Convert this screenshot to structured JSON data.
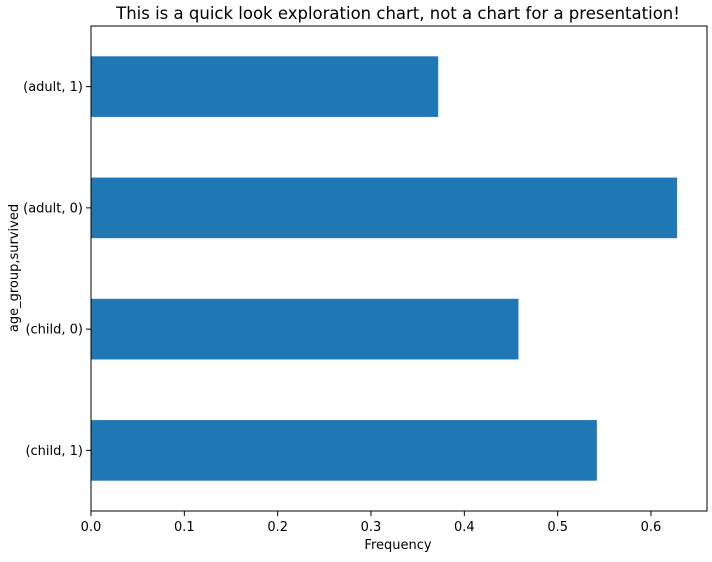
{
  "chart_data": {
    "type": "bar",
    "orientation": "horizontal",
    "title": "This is a quick look exploration chart, not a chart for a presentation!",
    "xlabel": "Frequency",
    "ylabel": "age_group,survived",
    "categories": [
      "(adult, 1)",
      "(adult, 0)",
      "(child, 0)",
      "(child, 1)"
    ],
    "values": [
      0.372,
      0.628,
      0.458,
      0.542
    ],
    "xlim": [
      0,
      0.66
    ],
    "xticks": [
      0.0,
      0.1,
      0.2,
      0.3,
      0.4,
      0.5,
      0.6
    ],
    "xtick_labels": [
      "0.0",
      "0.1",
      "0.2",
      "0.3",
      "0.4",
      "0.5",
      "0.6"
    ],
    "bar_color": "#1f77b4",
    "grid": false,
    "legend": false
  }
}
